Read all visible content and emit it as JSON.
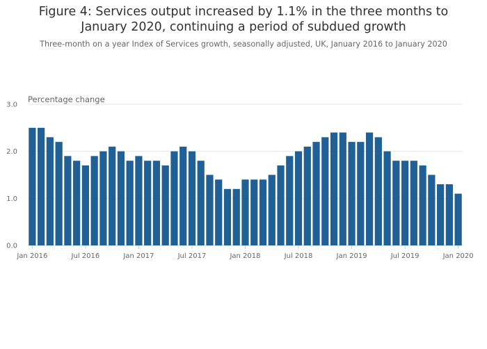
{
  "chart_data": {
    "type": "bar",
    "title": "Figure 4: Services output increased by 1.1% in the three months to January 2020, continuing a period of subdued growth",
    "subtitle": "Three-month on a year Index of Services growth, seasonally adjusted, UK, January 2016 to January 2020",
    "ylabel": "Percentage change",
    "xlabel": "",
    "ylim": [
      0,
      3
    ],
    "yticks": [
      "0.0",
      "1.0",
      "2.0",
      "3.0"
    ],
    "grid": true,
    "color": "#206095",
    "xticks": [
      {
        "index": 0,
        "label": "Jan 2016"
      },
      {
        "index": 6,
        "label": "Jul 2016"
      },
      {
        "index": 12,
        "label": "Jan 2017"
      },
      {
        "index": 18,
        "label": "Jul 2017"
      },
      {
        "index": 24,
        "label": "Jan 2018"
      },
      {
        "index": 30,
        "label": "Jul 2018"
      },
      {
        "index": 36,
        "label": "Jan 2019"
      },
      {
        "index": 42,
        "label": "Jul 2019"
      },
      {
        "index": 48,
        "label": "Jan 2020"
      }
    ],
    "values": [
      2.5,
      2.5,
      2.3,
      2.2,
      1.9,
      1.8,
      1.7,
      1.9,
      2.0,
      2.1,
      2.0,
      1.8,
      1.9,
      1.8,
      1.8,
      1.7,
      2.0,
      2.1,
      2.0,
      1.8,
      1.5,
      1.4,
      1.2,
      1.2,
      1.4,
      1.4,
      1.4,
      1.5,
      1.7,
      1.9,
      2.0,
      2.1,
      2.2,
      2.3,
      2.4,
      2.4,
      2.2,
      2.2,
      2.4,
      2.3,
      2.0,
      1.8,
      1.8,
      1.8,
      1.7,
      1.5,
      1.3,
      1.3,
      1.1
    ]
  }
}
